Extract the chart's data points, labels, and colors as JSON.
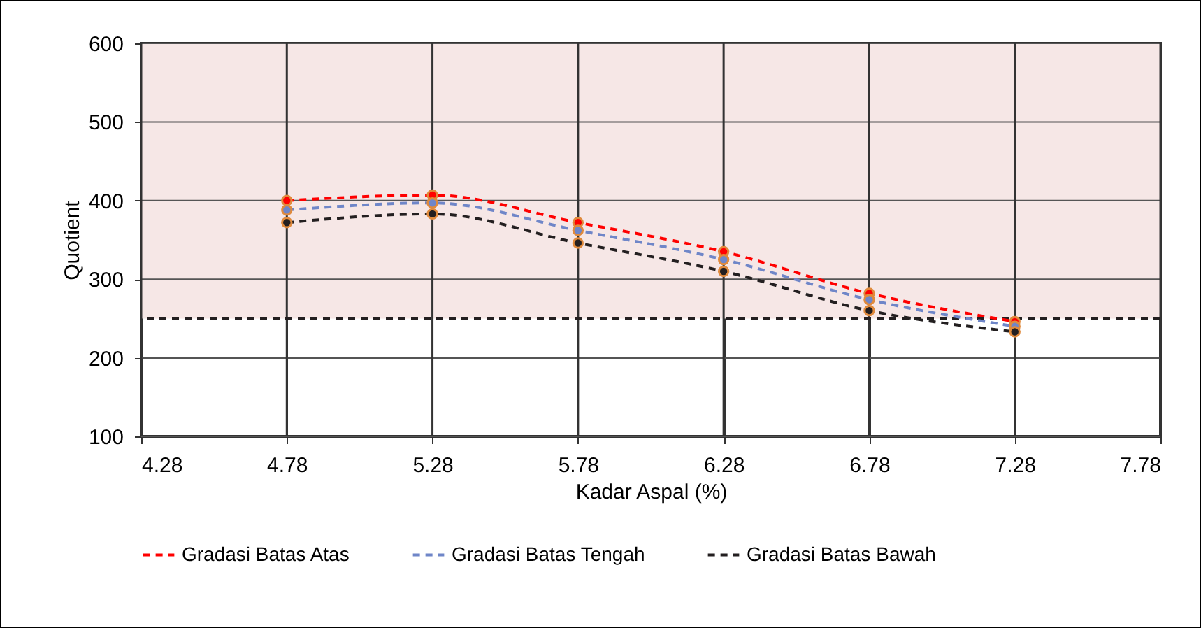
{
  "chart_data": {
    "type": "line",
    "xlabel": "Kadar Aspal  (%)",
    "ylabel": "Quotient",
    "xlim": [
      4.28,
      7.78
    ],
    "xticks": [
      4.28,
      4.78,
      5.28,
      5.78,
      6.28,
      6.78,
      7.28,
      7.78
    ],
    "ylim": [
      100,
      600
    ],
    "yticks": [
      100,
      200,
      300,
      400,
      500,
      600
    ],
    "x": [
      4.78,
      5.28,
      5.78,
      6.28,
      6.78,
      7.28
    ],
    "series": [
      {
        "name": "Gradasi Batas Atas",
        "color": "#ff0000",
        "values": [
          400,
          407,
          372,
          335,
          282,
          246
        ]
      },
      {
        "name": "Gradasi Batas Tengah",
        "color": "#6f86c8",
        "values": [
          388,
          397,
          362,
          325,
          274,
          240
        ]
      },
      {
        "name": "Gradasi Batas Bawah",
        "color": "#231f20",
        "values": [
          372,
          383,
          346,
          310,
          260,
          233
        ]
      }
    ],
    "ref_lines": [
      {
        "axis": "y",
        "value": 250,
        "color": "#231f20",
        "line_style": "dashed"
      }
    ],
    "bands": [
      {
        "axis": "y",
        "from": 250,
        "to": 600,
        "color": "#f6e7e6"
      }
    ],
    "grid": true,
    "legend": "bottom",
    "marker": "circle",
    "line_style": "dashed"
  }
}
